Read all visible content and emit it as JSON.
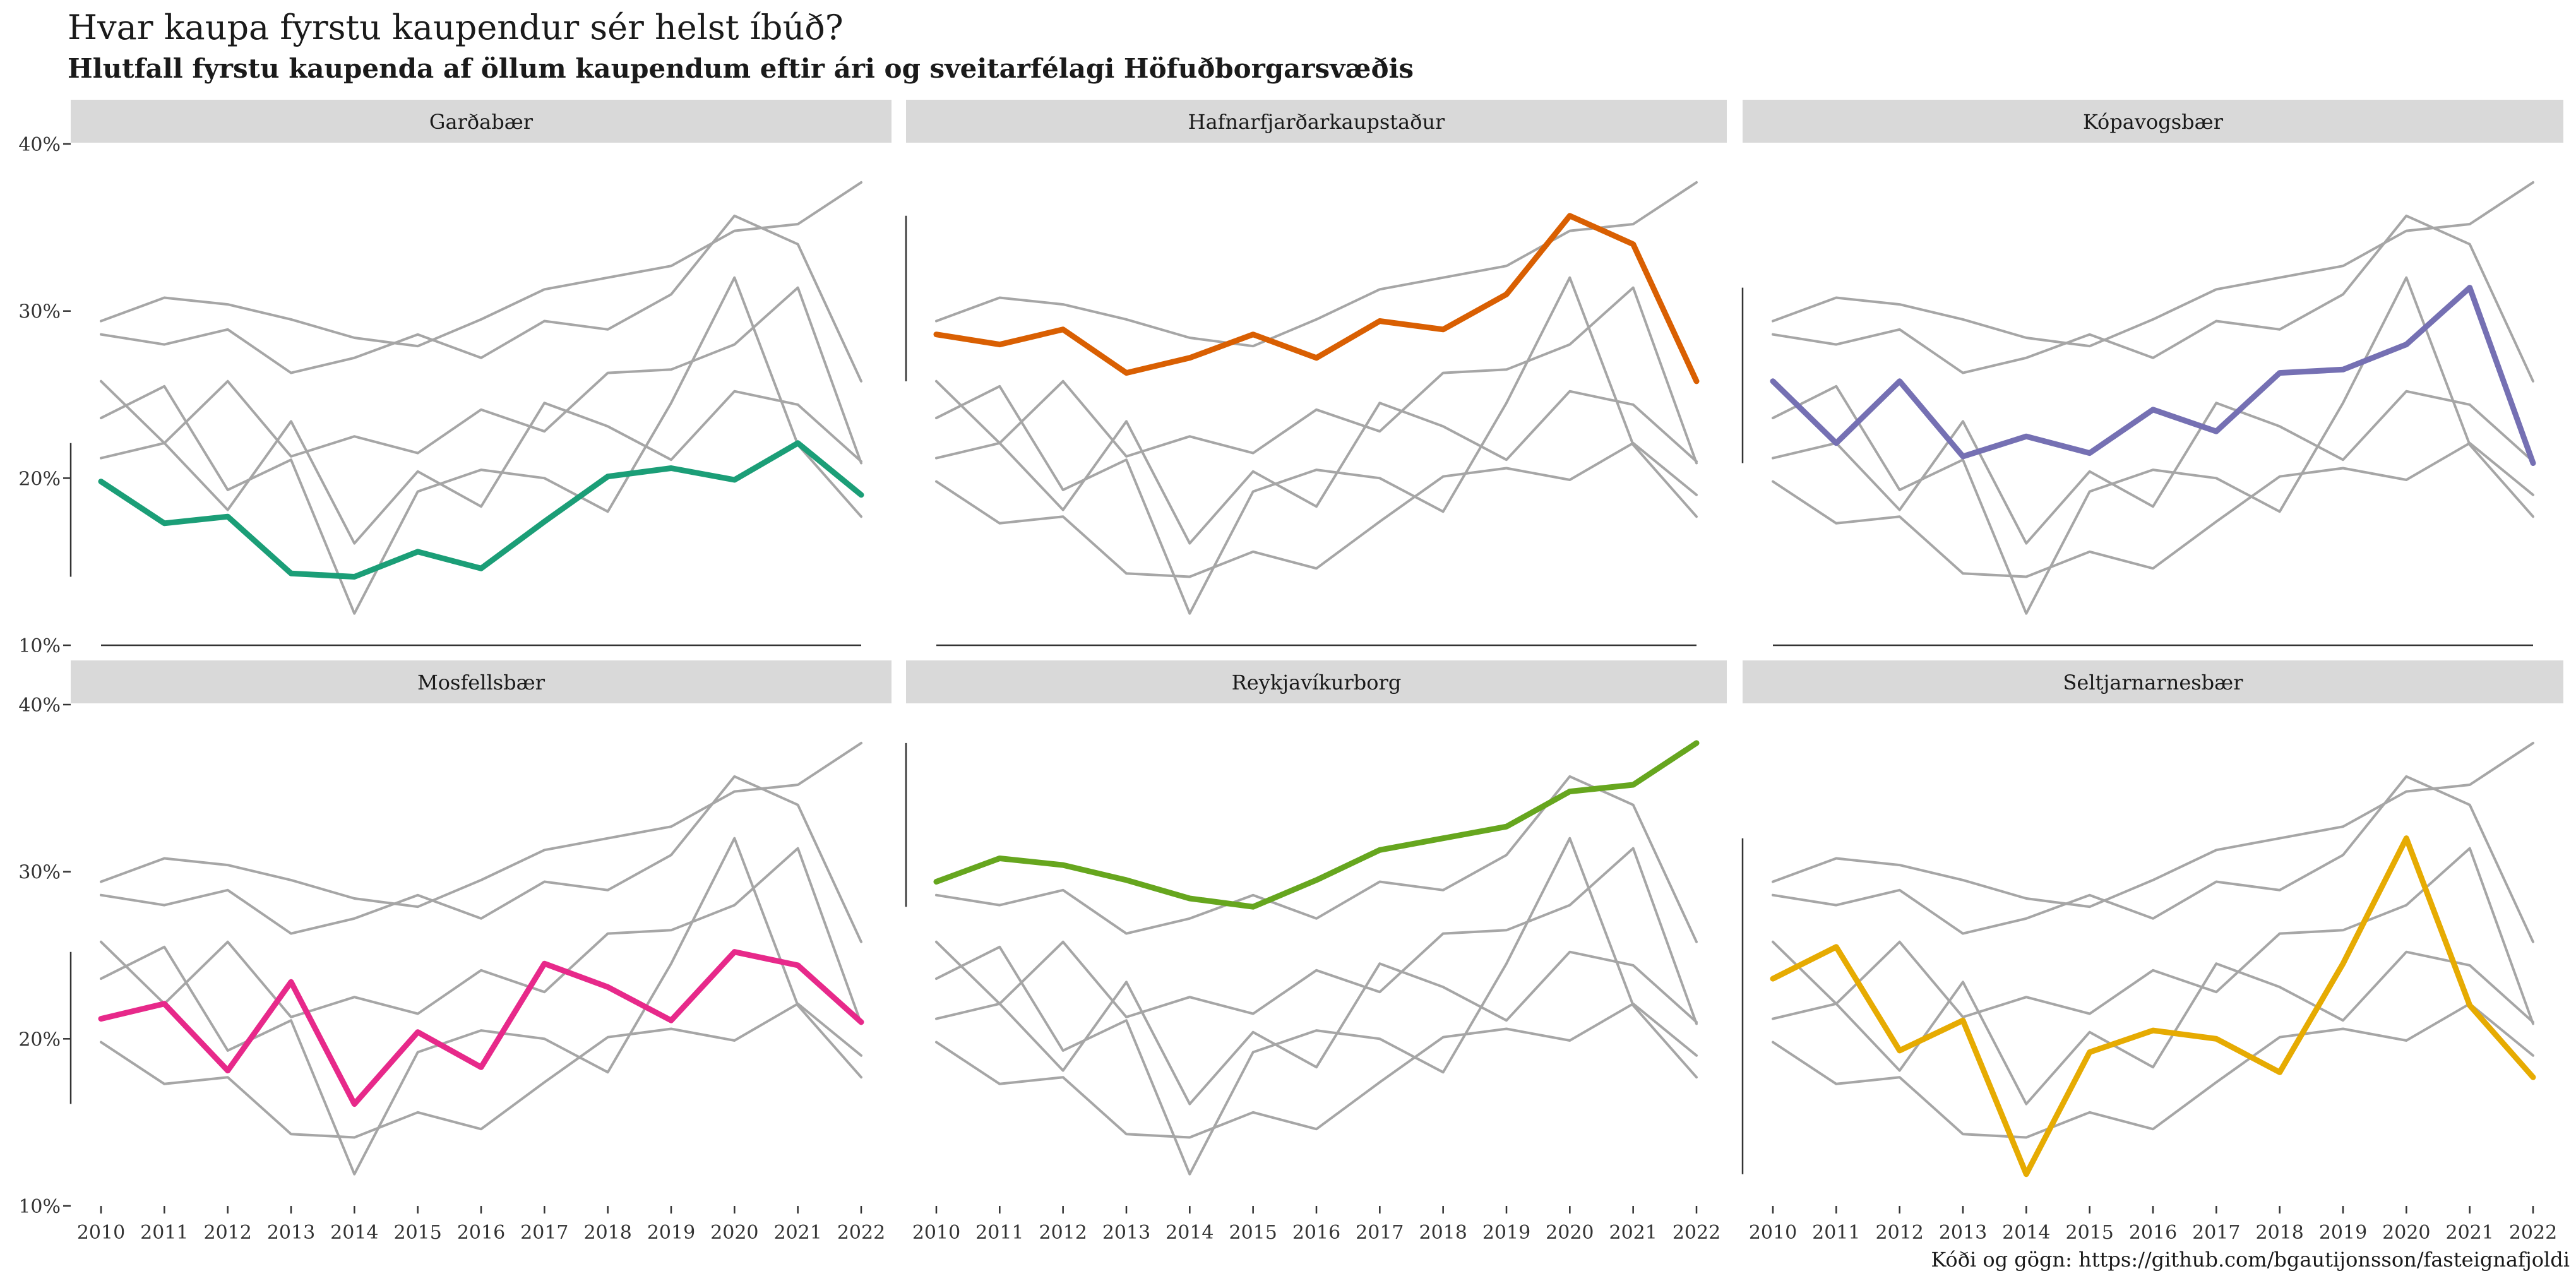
{
  "title": "Hvar kaupa fyrstu kaupendur sér helst íbúð?",
  "subtitle": "Hlutfall fyrstu kaupenda af öllum kaupendum eftir ári og sveitarfélagi Höfuðborgarsvæðis",
  "caption": "Kóði og gögn: https://github.com/bgautijonsson/fasteignafjoldi",
  "chart_data": {
    "type": "line",
    "layout": "small-multiples 2x3",
    "x": [
      2010,
      2011,
      2012,
      2013,
      2014,
      2015,
      2016,
      2017,
      2018,
      2019,
      2020,
      2021,
      2022
    ],
    "ylim": [
      10,
      40
    ],
    "y_ticks": [
      10,
      20,
      30,
      40
    ],
    "y_tick_labels": [
      "10%",
      "20%",
      "30%",
      "40%"
    ],
    "background_color": "#d9d9d9",
    "grid": false,
    "series": [
      {
        "name": "Garðabær",
        "color": "#1b9e77",
        "values": [
          19.8,
          17.3,
          17.7,
          14.3,
          14.1,
          15.6,
          14.6,
          17.4,
          20.1,
          20.6,
          19.9,
          22.1,
          19.0
        ]
      },
      {
        "name": "Hafnarfjarðarkaupstaður",
        "color": "#d95f02",
        "values": [
          28.6,
          28.0,
          28.9,
          26.3,
          27.2,
          28.6,
          27.2,
          29.4,
          28.9,
          31.0,
          35.7,
          34.0,
          25.8
        ]
      },
      {
        "name": "Kópavogsbær",
        "color": "#7570b3",
        "values": [
          25.8,
          22.1,
          25.8,
          21.3,
          22.5,
          21.5,
          24.1,
          22.8,
          26.3,
          26.5,
          28.0,
          31.4,
          20.9
        ]
      },
      {
        "name": "Mosfellsbær",
        "color": "#e7298a",
        "values": [
          21.2,
          22.1,
          18.1,
          23.4,
          16.1,
          20.4,
          18.3,
          24.5,
          23.1,
          21.1,
          25.2,
          24.4,
          21.0
        ]
      },
      {
        "name": "Reykjavíkurborg",
        "color": "#66a61e",
        "values": [
          29.4,
          30.8,
          30.4,
          29.5,
          28.4,
          27.9,
          29.5,
          31.3,
          32.0,
          32.7,
          34.8,
          35.2,
          37.7
        ]
      },
      {
        "name": "Seltjarnarnesbær",
        "color": "#e6ab02",
        "values": [
          23.6,
          25.5,
          19.3,
          21.1,
          11.9,
          19.2,
          20.5,
          20.0,
          18.0,
          24.5,
          32.0,
          22.0,
          17.7
        ]
      }
    ]
  }
}
